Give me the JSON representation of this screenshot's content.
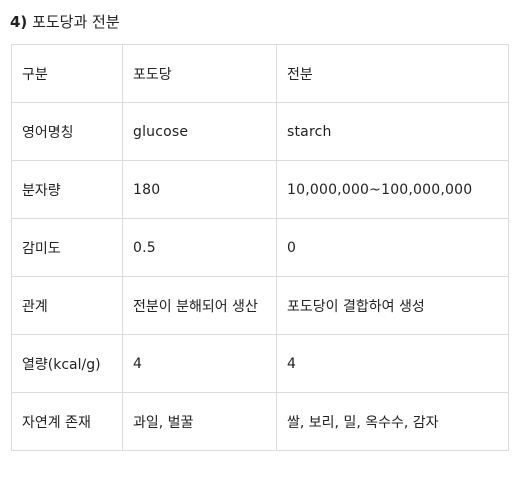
{
  "heading": {
    "number": "4)",
    "title": "포도당과 전분"
  },
  "table": {
    "header": [
      "구분",
      "포도당",
      "전분"
    ],
    "rows": [
      [
        "영어명칭",
        "glucose",
        "starch"
      ],
      [
        "분자량",
        "180",
        "10,000,000~100,000,000"
      ],
      [
        "감미도",
        "0.5",
        "0"
      ],
      [
        "관계",
        "전분이 분해되어 생산",
        "포도당이 결합하여 생성"
      ],
      [
        "열량(kcal/g)",
        "4",
        "4"
      ],
      [
        "자연계 존재",
        "과일, 벌꿀",
        "쌀, 보리, 밀, 옥수수, 감자"
      ]
    ]
  }
}
